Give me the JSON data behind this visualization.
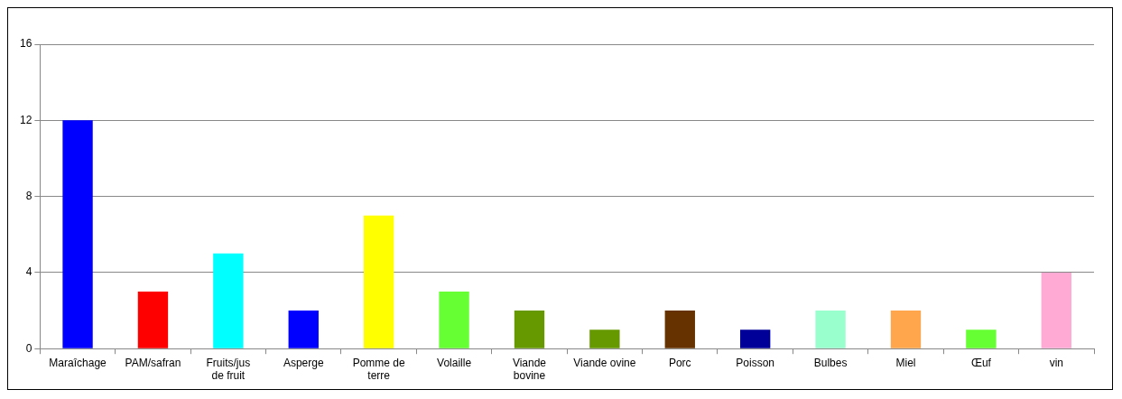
{
  "chart_data": {
    "type": "bar",
    "categories": [
      "Maraîchage",
      "PAM/safran",
      "Fruits/jus de fruit",
      "Asperge",
      "Pomme de terre",
      "Volaille",
      "Viande bovine",
      "Viande ovine",
      "Porc",
      "Poisson",
      "Bulbes",
      "Miel",
      "Œuf",
      "vin"
    ],
    "values": [
      12,
      3,
      5,
      2,
      7,
      3,
      2,
      1,
      2,
      1,
      2,
      2,
      1,
      4
    ],
    "colors": [
      "#0000ff",
      "#ff0000",
      "#00ffff",
      "#0000ff",
      "#ffff00",
      "#66ff33",
      "#669900",
      "#669900",
      "#663300",
      "#000099",
      "#99ffcc",
      "#ffa64d",
      "#66ff33",
      "#ffaad4"
    ],
    "ylim": [
      0,
      16
    ],
    "yticks": [
      0,
      4,
      8,
      12,
      16
    ],
    "grid": "y",
    "legend": false
  }
}
